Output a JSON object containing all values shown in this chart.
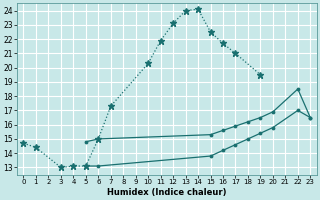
{
  "xlabel": "Humidex (Indice chaleur)",
  "bg_color": "#c8e8e8",
  "grid_color": "#ffffff",
  "line_color": "#1a7070",
  "xlim": [
    -0.5,
    23.5
  ],
  "ylim": [
    12.5,
    24.5
  ],
  "xticks": [
    0,
    1,
    2,
    3,
    4,
    5,
    6,
    7,
    8,
    9,
    10,
    11,
    12,
    13,
    14,
    15,
    16,
    17,
    18,
    19,
    20,
    21,
    22,
    23
  ],
  "yticks": [
    13,
    14,
    15,
    16,
    17,
    18,
    19,
    20,
    21,
    22,
    23,
    24
  ],
  "series": [
    {
      "x": [
        0,
        1,
        3,
        4,
        5,
        6,
        7,
        10,
        11,
        12,
        13,
        14,
        15,
        16,
        17,
        19
      ],
      "y": [
        14.7,
        14.4,
        13.0,
        13.1,
        13.1,
        15.0,
        17.3,
        20.3,
        21.9,
        23.1,
        24.0,
        24.1,
        22.5,
        21.7,
        21.0,
        19.5
      ],
      "linestyle": "dotted",
      "marker": "*",
      "markersize": 4.5
    },
    {
      "x": [
        5,
        6,
        15,
        16,
        17,
        18,
        19,
        20,
        22,
        23
      ],
      "y": [
        14.8,
        15.0,
        15.3,
        15.6,
        15.9,
        16.2,
        16.5,
        16.9,
        18.5,
        16.5
      ],
      "linestyle": "solid",
      "marker": ".",
      "markersize": 3.5
    },
    {
      "x": [
        5,
        6,
        15,
        16,
        17,
        18,
        19,
        20,
        22,
        23
      ],
      "y": [
        13.1,
        13.1,
        13.8,
        14.2,
        14.6,
        15.0,
        15.4,
        15.8,
        17.0,
        16.5
      ],
      "linestyle": "solid",
      "marker": ".",
      "markersize": 3.5
    }
  ]
}
